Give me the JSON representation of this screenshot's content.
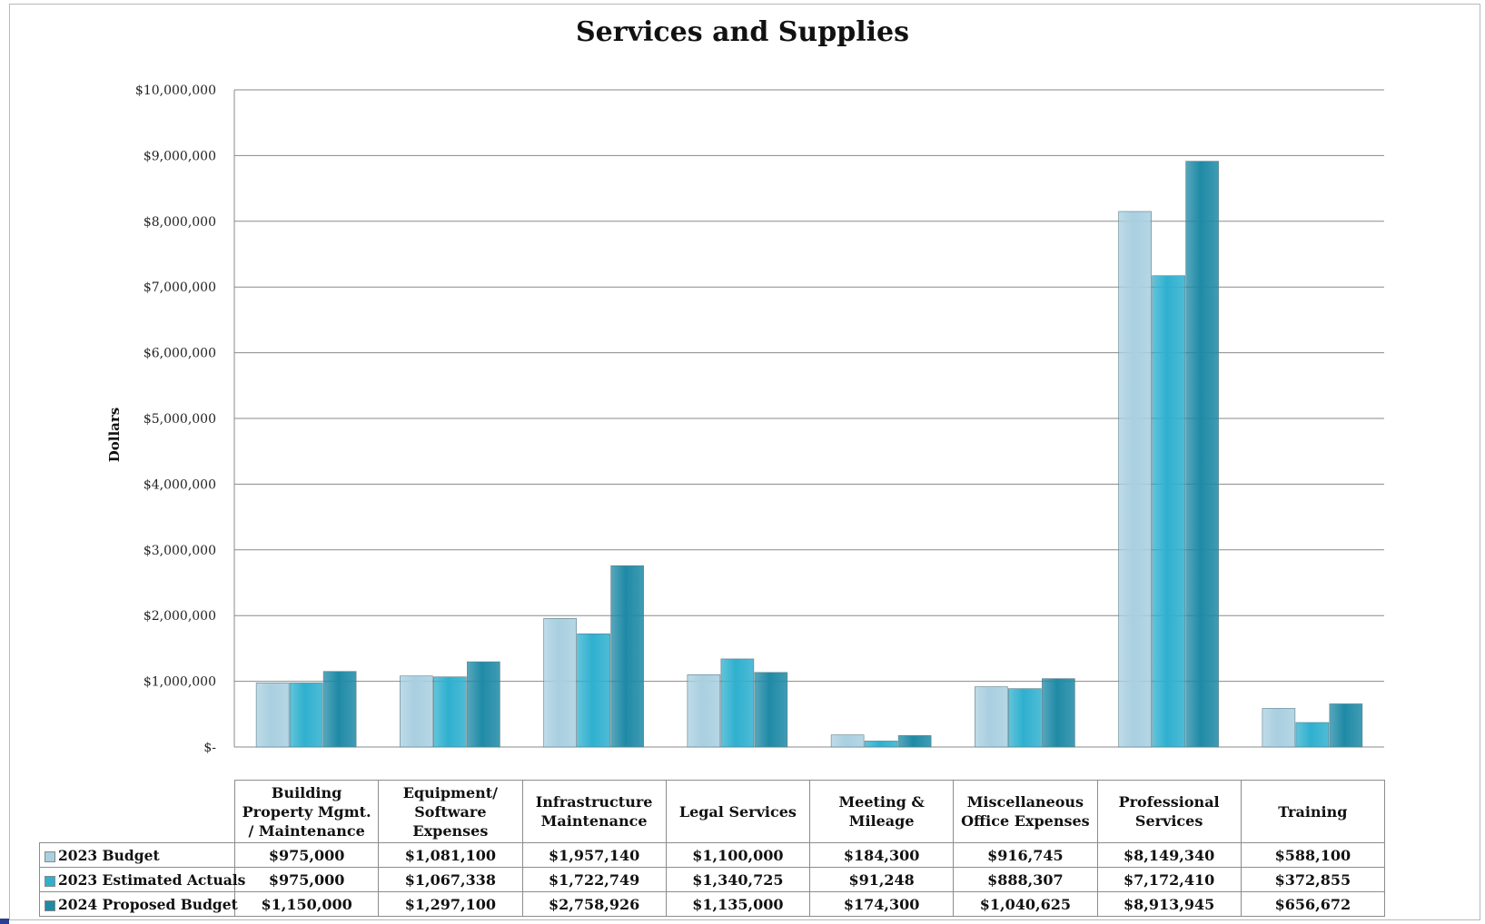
{
  "chart_data": {
    "type": "bar",
    "title": "Services and Supplies",
    "ylabel": "Dollars",
    "xlabel": "",
    "ylim": [
      0,
      10000000
    ],
    "yticks": [
      {
        "value": 0,
        "label": "$-"
      },
      {
        "value": 1000000,
        "label": "$1,000,000"
      },
      {
        "value": 2000000,
        "label": "$2,000,000"
      },
      {
        "value": 3000000,
        "label": "$3,000,000"
      },
      {
        "value": 4000000,
        "label": "$4,000,000"
      },
      {
        "value": 5000000,
        "label": "$5,000,000"
      },
      {
        "value": 6000000,
        "label": "$6,000,000"
      },
      {
        "value": 7000000,
        "label": "$7,000,000"
      },
      {
        "value": 8000000,
        "label": "$8,000,000"
      },
      {
        "value": 9000000,
        "label": "$9,000,000"
      },
      {
        "value": 10000000,
        "label": "$10,000,000"
      }
    ],
    "grid": true,
    "legend": "data-table",
    "categories": [
      [
        "Building",
        "Property Mgmt.",
        "/ Maintenance"
      ],
      [
        "Equipment/",
        "Software",
        "Expenses"
      ],
      [
        "Infrastructure",
        "Maintenance"
      ],
      [
        "Legal Services"
      ],
      [
        "Meeting &",
        "Mileage"
      ],
      [
        "Miscellaneous",
        "Office Expenses"
      ],
      [
        "Professional",
        "Services"
      ],
      [
        "Training"
      ]
    ],
    "series": [
      {
        "name": "2023 Budget",
        "color": "#a9cfe0",
        "values": [
          975000,
          1081100,
          1957140,
          1100000,
          184300,
          916745,
          8149340,
          588100
        ],
        "labels": [
          "$975,000",
          "$1,081,100",
          "$1,957,140",
          "$1,100,000",
          "$184,300",
          "$916,745",
          "$8,149,340",
          "$588,100"
        ]
      },
      {
        "name": "2023 Estimated Actuals",
        "color": "#2fb0cf",
        "values": [
          975000,
          1067338,
          1722749,
          1340725,
          91248,
          888307,
          7172410,
          372855
        ],
        "labels": [
          "$975,000",
          "$1,067,338",
          "$1,722,749",
          "$1,340,725",
          "$91,248",
          "$888,307",
          "$7,172,410",
          "$372,855"
        ]
      },
      {
        "name": "2024 Proposed Budget",
        "color": "#1f8aa6",
        "values": [
          1150000,
          1297100,
          2758926,
          1135000,
          174300,
          1040625,
          8913945,
          656672
        ],
        "labels": [
          "$1,150,000",
          "$1,297,100",
          "$2,758,926",
          "$1,135,000",
          "$174,300",
          "$1,040,625",
          "$8,913,945",
          "$656,672"
        ]
      }
    ]
  }
}
